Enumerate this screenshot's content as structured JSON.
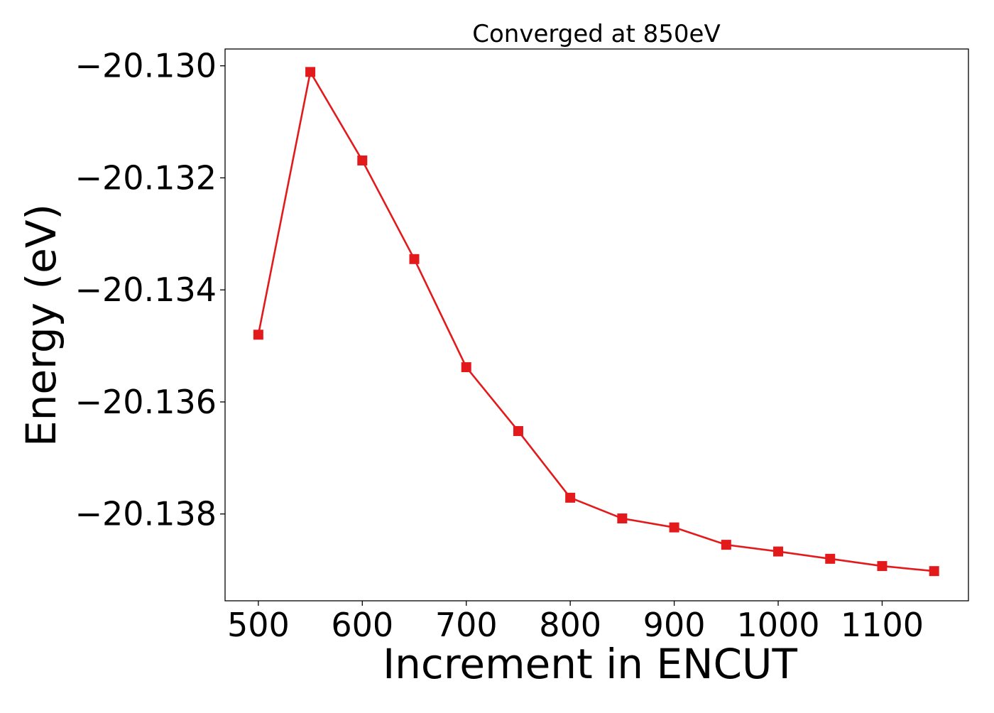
{
  "chart_data": {
    "type": "line",
    "title": "Converged at 850eV",
    "xlabel": "Increment in ENCUT",
    "ylabel": "Energy (eV)",
    "xlim": [
      468,
      1183
    ],
    "ylim": [
      -20.13955,
      -20.1297
    ],
    "xticks": [
      500,
      600,
      700,
      800,
      900,
      1000,
      1100
    ],
    "xtick_labels": [
      "500",
      "600",
      "700",
      "800",
      "900",
      "1000",
      "1100"
    ],
    "yticks": [
      -20.13,
      -20.132,
      -20.134,
      -20.136,
      -20.138
    ],
    "ytick_labels": [
      "−20.130",
      "−20.132",
      "−20.134",
      "−20.136",
      "−20.138"
    ],
    "grid": false,
    "series": [
      {
        "color": "#e31a1c",
        "marker": "square",
        "x": [
          500,
          550,
          600,
          650,
          700,
          750,
          800,
          850,
          900,
          950,
          1000,
          1050,
          1100,
          1150
        ],
        "y": [
          -20.1348,
          -20.13011,
          -20.13169,
          -20.13345,
          -20.13538,
          -20.13652,
          -20.13771,
          -20.13808,
          -20.13824,
          -20.13855,
          -20.13867,
          -20.1388,
          -20.13893,
          -20.13902
        ]
      }
    ]
  }
}
